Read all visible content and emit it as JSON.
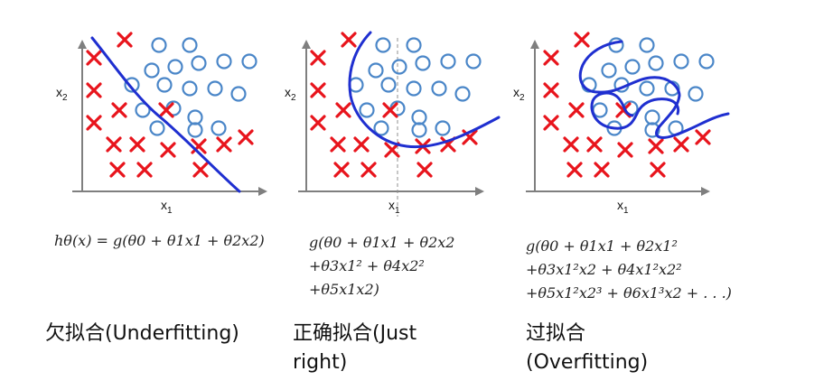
{
  "panels": [
    {
      "x_label": "x",
      "x_sub": "1",
      "y_label": "x",
      "y_sub": "2",
      "formula_lines": [
        "hθ(x) = g(θ0 + θ1x1 + θ2x2)"
      ],
      "caption_lines": [
        "欠拟合(Underfitting)"
      ]
    },
    {
      "x_label": "x",
      "x_sub": "1",
      "y_label": "x",
      "y_sub": "2",
      "formula_lines": [
        "g(θ0 + θ1x1 + θ2x2",
        "+θ3x1² + θ4x2²",
        "+θ5x1x2)"
      ],
      "caption_lines": [
        "正确拟合(Just",
        "right)"
      ]
    },
    {
      "x_label": "x",
      "x_sub": "1",
      "y_label": "x",
      "y_sub": "2",
      "formula_lines": [
        "g(θ0 + θ1x1 + θ2x1²",
        "+θ3x1²x2 + θ4x1²x2²",
        "+θ5x1²x2³ + θ6x1³x2 + . . .)"
      ],
      "caption_lines": [
        "过拟合",
        "(Overfitting)"
      ]
    }
  ],
  "colors": {
    "positive_marker": "#e8141c",
    "negative_marker": "#4a86c8",
    "decision_boundary": "#1f2fd0",
    "axis": "#7f7f7f"
  },
  "marker_icons": {
    "positive": "cross-marker",
    "negative": "circle-marker"
  }
}
